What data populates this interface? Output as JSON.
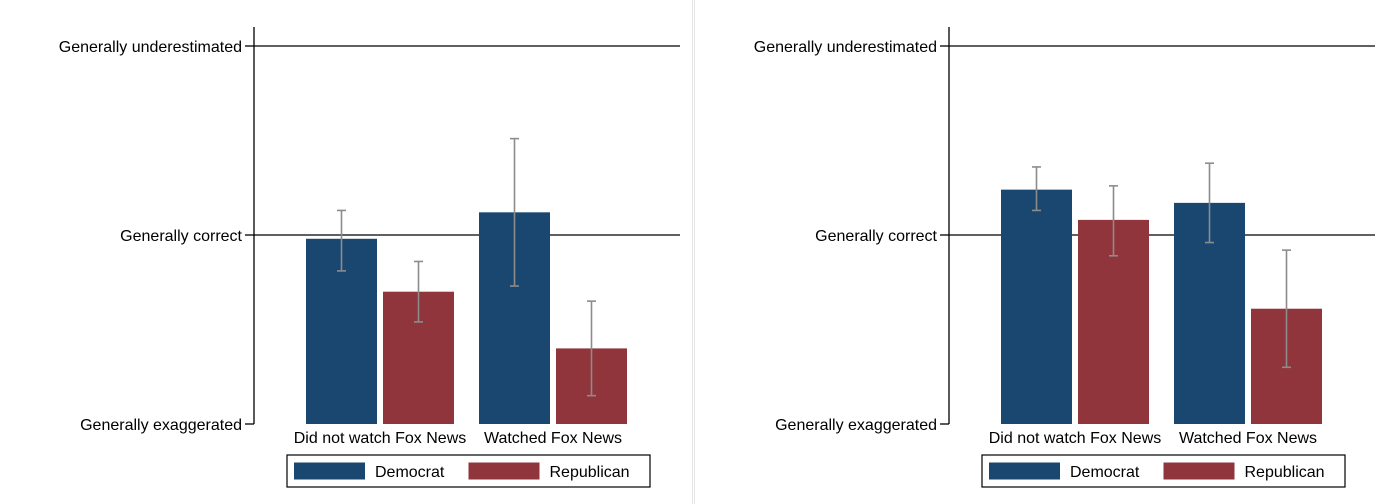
{
  "chart_data": [
    {
      "type": "bar",
      "title": "",
      "xlabel": "",
      "ylabel": "",
      "ylim": [
        0,
        2
      ],
      "y_ticks": [
        {
          "value": 0,
          "label": "Generally exaggerated"
        },
        {
          "value": 1,
          "label": "Generally correct"
        },
        {
          "value": 2,
          "label": "Generally underestimated"
        }
      ],
      "categories": [
        "Did not watch Fox News",
        "Watched Fox News"
      ],
      "series": [
        {
          "name": "Democrat",
          "color": "#1a476f",
          "values": [
            0.98,
            1.12
          ],
          "ci_low": [
            0.81,
            0.73
          ],
          "ci_high": [
            1.13,
            1.51
          ]
        },
        {
          "name": "Republican",
          "color": "#90353b",
          "values": [
            0.7,
            0.4
          ],
          "ci_low": [
            0.54,
            0.15
          ],
          "ci_high": [
            0.86,
            0.65
          ]
        }
      ],
      "error_bars": true,
      "grid": "horizontal lines at y ticks",
      "legend": {
        "position": "bottom"
      }
    },
    {
      "type": "bar",
      "title": "",
      "xlabel": "",
      "ylabel": "",
      "ylim": [
        0,
        2
      ],
      "y_ticks": [
        {
          "value": 0,
          "label": "Generally exaggerated"
        },
        {
          "value": 1,
          "label": "Generally correct"
        },
        {
          "value": 2,
          "label": "Generally underestimated"
        }
      ],
      "categories": [
        "Did not watch Fox News",
        "Watched Fox News"
      ],
      "series": [
        {
          "name": "Democrat",
          "color": "#1a476f",
          "values": [
            1.24,
            1.17
          ],
          "ci_low": [
            1.13,
            0.96
          ],
          "ci_high": [
            1.36,
            1.38
          ]
        },
        {
          "name": "Republican",
          "color": "#90353b",
          "values": [
            1.08,
            0.61
          ],
          "ci_low": [
            0.89,
            0.3
          ],
          "ci_high": [
            1.26,
            0.92
          ]
        }
      ],
      "error_bars": true,
      "grid": "horizontal lines at y ticks",
      "legend": {
        "position": "bottom"
      }
    }
  ]
}
